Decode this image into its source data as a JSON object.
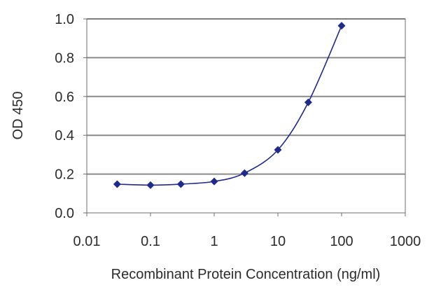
{
  "chart_data": {
    "type": "line",
    "xscale": "log",
    "xlabel": "Recombinant Protein Concentration (ng/ml)",
    "ylabel": "OD 450",
    "xlim": [
      0.01,
      1000
    ],
    "ylim": [
      0.0,
      1.0
    ],
    "xticks": [
      "0.01",
      "0.1",
      "1",
      "10",
      "100",
      "1000"
    ],
    "yticks": [
      "0.0",
      "0.2",
      "0.4",
      "0.6",
      "0.8",
      "1.0"
    ],
    "grid": "horizontal",
    "legend": "none",
    "series": [
      {
        "color": "#1f2a8a",
        "marker": "diamond",
        "x": [
          0.03,
          0.1,
          0.3,
          1,
          3,
          10,
          30,
          100
        ],
        "y": [
          0.148,
          0.143,
          0.148,
          0.162,
          0.205,
          0.325,
          0.57,
          0.965
        ]
      }
    ]
  }
}
